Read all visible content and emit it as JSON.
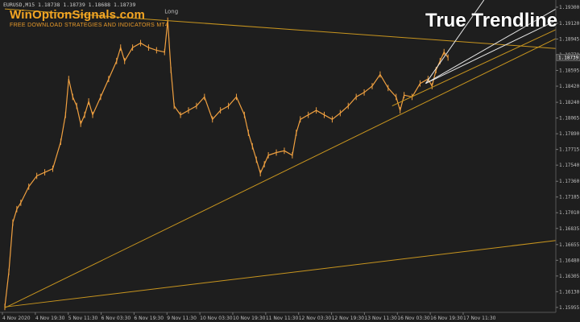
{
  "window": {
    "symbol_header": "EURUSD,M15  1.18738 1.18739 1.18688 1.18739"
  },
  "branding": {
    "site": "WinOptionSignals.com",
    "tagline": "FREE DOWNLOAD STRATEGIES AND INDICATORS MT4",
    "title": "True Trendline"
  },
  "annotations": {
    "long_label": "Long"
  },
  "colors": {
    "background": "#1e1e1e",
    "candles": "#f0a040",
    "trendline": "#c8951e",
    "projection": "#e8e8e8",
    "axis_text": "#bfbfbf",
    "price_tag_bg": "#3a3a3a"
  },
  "chart_data": {
    "type": "line",
    "title": "",
    "xlabel": "",
    "ylabel": "",
    "x_ticks": [
      "4 Nov 2020",
      "4 Nov 19:30",
      "5 Nov 11:30",
      "6 Nov 03:30",
      "6 Nov 19:30",
      "9 Nov 11:30",
      "10 Nov 03:30",
      "10 Nov 19:30",
      "11 Nov 11:30",
      "12 Nov 03:30",
      "12 Nov 19:30",
      "13 Nov 11:30",
      "16 Nov 03:30",
      "16 Nov 19:30",
      "17 Nov 11:30"
    ],
    "y_ticks": [
      1.193,
      1.1912,
      1.18945,
      1.1877,
      1.18595,
      1.1842,
      1.1824,
      1.18065,
      1.1789,
      1.17715,
      1.1754,
      1.1736,
      1.17185,
      1.1701,
      1.16835,
      1.16655,
      1.1648,
      1.16305,
      1.1613,
      1.15955
    ],
    "current_price": "1.18739",
    "ylim": [
      1.159,
      1.1938
    ],
    "close_x": [
      0,
      5,
      10,
      15,
      20,
      30,
      40,
      50,
      60,
      70,
      76,
      80,
      85,
      90,
      95,
      100,
      105,
      110,
      120,
      130,
      140,
      145,
      150,
      160,
      170,
      180,
      190,
      200,
      204,
      208,
      212,
      220,
      230,
      240,
      250,
      260,
      270,
      280,
      290,
      300,
      305,
      310,
      315,
      320,
      325,
      330,
      340,
      350,
      360,
      365,
      370,
      380,
      390,
      400,
      410,
      420,
      430,
      440,
      450,
      460,
      470,
      480,
      490,
      495,
      500,
      510,
      520,
      530,
      535,
      540,
      545,
      550,
      555
    ],
    "close_y": [
      1.1596,
      1.1635,
      1.169,
      1.1705,
      1.1712,
      1.173,
      1.1742,
      1.1746,
      1.175,
      1.178,
      1.181,
      1.185,
      1.183,
      1.182,
      1.18,
      1.181,
      1.1825,
      1.181,
      1.183,
      1.185,
      1.187,
      1.1885,
      1.187,
      1.1885,
      1.189,
      1.1885,
      1.1882,
      1.188,
      1.1915,
      1.186,
      1.182,
      1.181,
      1.1815,
      1.182,
      1.183,
      1.1805,
      1.1815,
      1.182,
      1.183,
      1.181,
      1.179,
      1.1775,
      1.176,
      1.1745,
      1.1755,
      1.1765,
      1.1768,
      1.177,
      1.1765,
      1.179,
      1.1805,
      1.181,
      1.1815,
      1.181,
      1.1805,
      1.1812,
      1.182,
      1.183,
      1.1835,
      1.1842,
      1.1855,
      1.184,
      1.183,
      1.1815,
      1.1832,
      1.183,
      1.1845,
      1.185,
      1.1842,
      1.186,
      1.187,
      1.188,
      1.18739
    ]
  }
}
